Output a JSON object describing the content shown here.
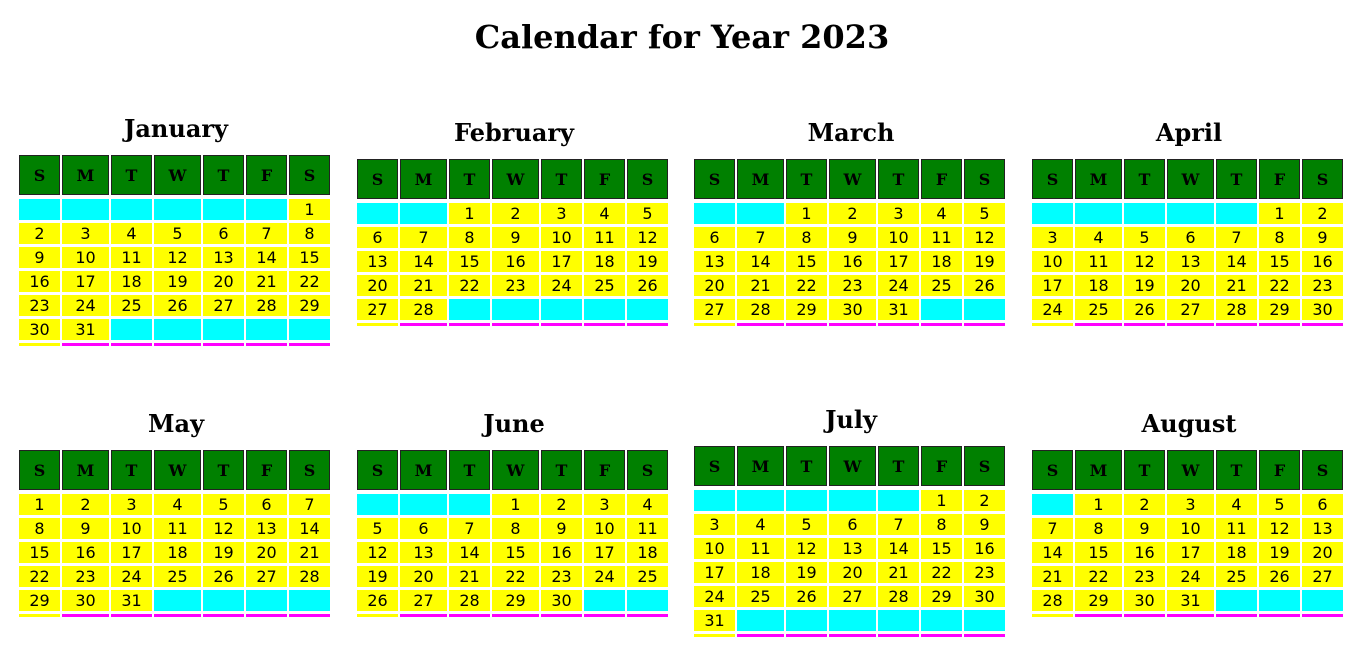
{
  "title": "Calendar for Year 2023",
  "colors": {
    "header": "#008000",
    "day": "#ffff00",
    "empty": "#00ffff",
    "footer": "#ff00ff"
  },
  "weekdays": [
    "S",
    "M",
    "T",
    "W",
    "T",
    "F",
    "S"
  ],
  "months": [
    {
      "name": "January",
      "offset": 6,
      "days": 31
    },
    {
      "name": "February",
      "offset": 2,
      "days": 28
    },
    {
      "name": "March",
      "offset": 2,
      "days": 31
    },
    {
      "name": "April",
      "offset": 5,
      "days": 30
    },
    {
      "name": "May",
      "offset": 0,
      "days": 31
    },
    {
      "name": "June",
      "offset": 3,
      "days": 30
    },
    {
      "name": "July",
      "offset": 5,
      "days": 31
    },
    {
      "name": "August",
      "offset": 1,
      "days": 31
    }
  ]
}
